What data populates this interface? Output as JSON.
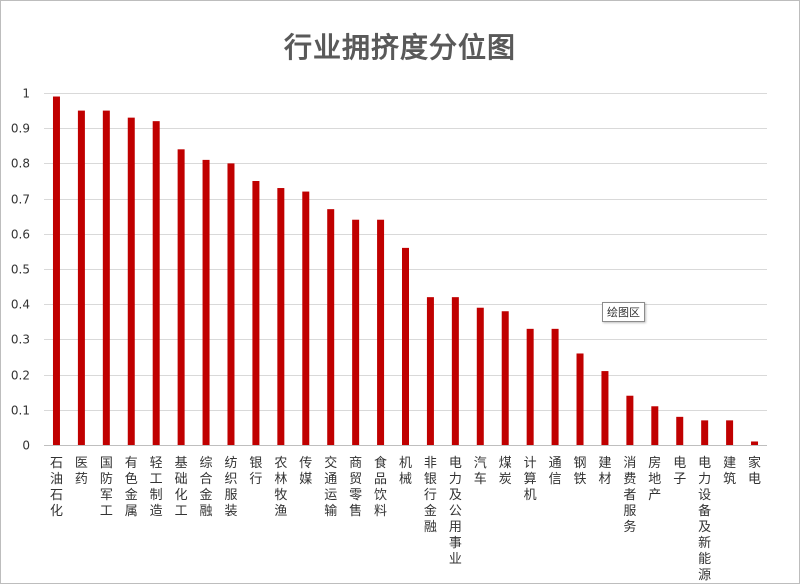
{
  "chart_data": {
    "type": "bar",
    "title": "行业拥挤度分位图",
    "xlabel": "",
    "ylabel": "",
    "ylim": [
      0,
      1
    ],
    "yticks": [
      "0",
      "0.1",
      "0.2",
      "0.3",
      "0.4",
      "0.5",
      "0.6",
      "0.7",
      "0.8",
      "0.9",
      "1"
    ],
    "grid": true,
    "bar_color": "#c00000",
    "categories": [
      "石油石化",
      "医药",
      "国防军工",
      "有色金属",
      "轻工制造",
      "基础化工",
      "综合金融",
      "纺织服装",
      "银行",
      "农林牧渔",
      "传媒",
      "交通运输",
      "商贸零售",
      "食品饮料",
      "机械",
      "非银行金融",
      "电力及公用事业",
      "汽车",
      "煤炭",
      "计算机",
      "通信",
      "钢铁",
      "建材",
      "消费者服务",
      "房地产",
      "电子",
      "电力设备及新能源",
      "建筑",
      "家电"
    ],
    "values": [
      0.99,
      0.95,
      0.95,
      0.93,
      0.92,
      0.84,
      0.81,
      0.8,
      0.75,
      0.73,
      0.72,
      0.67,
      0.64,
      0.64,
      0.56,
      0.42,
      0.42,
      0.39,
      0.38,
      0.33,
      0.33,
      0.26,
      0.21,
      0.14,
      0.11,
      0.08,
      0.07,
      0.07,
      0.01
    ]
  },
  "tooltip": {
    "text": "绘图区"
  }
}
